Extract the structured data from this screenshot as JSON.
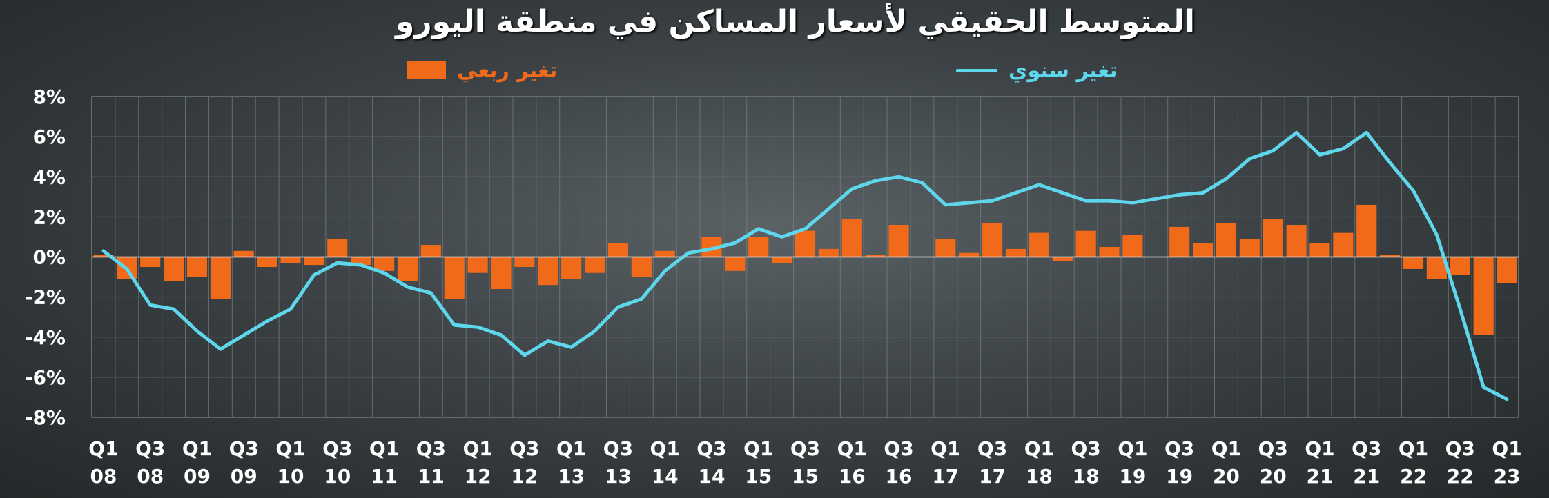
{
  "chart_data": {
    "type": "bar",
    "title": "المتوسط الحقيقي لأسعار المساكن في منطقة اليورو",
    "legend": {
      "quarterly_label": "تغير ربعي",
      "annual_label": "تغير سنوي",
      "placement": "top-center"
    },
    "y_ticks": [
      "8%",
      "6%",
      "4%",
      "2%",
      "0%",
      "-2%",
      "-4%",
      "-6%",
      "-8%"
    ],
    "ylim": [
      -8,
      8
    ],
    "grid": true,
    "x_ticks": [
      [
        "Q1",
        "08"
      ],
      [
        "Q3",
        "08"
      ],
      [
        "Q1",
        "09"
      ],
      [
        "Q3",
        "09"
      ],
      [
        "Q1",
        "10"
      ],
      [
        "Q3",
        "10"
      ],
      [
        "Q1",
        "11"
      ],
      [
        "Q3",
        "11"
      ],
      [
        "Q1",
        "12"
      ],
      [
        "Q3",
        "12"
      ],
      [
        "Q1",
        "13"
      ],
      [
        "Q3",
        "13"
      ],
      [
        "Q1",
        "14"
      ],
      [
        "Q3",
        "14"
      ],
      [
        "Q1",
        "15"
      ],
      [
        "Q3",
        "15"
      ],
      [
        "Q1",
        "16"
      ],
      [
        "Q3",
        "16"
      ],
      [
        "Q1",
        "17"
      ],
      [
        "Q3",
        "17"
      ],
      [
        "Q1",
        "18"
      ],
      [
        "Q3",
        "18"
      ],
      [
        "Q1",
        "19"
      ],
      [
        "Q3",
        "19"
      ],
      [
        "Q1",
        "20"
      ],
      [
        "Q3",
        "20"
      ],
      [
        "Q1",
        "21"
      ],
      [
        "Q3",
        "21"
      ],
      [
        "Q1",
        "22"
      ],
      [
        "Q3",
        "22"
      ],
      [
        "Q1",
        "23"
      ]
    ],
    "series": [
      {
        "name": "تغير ربعي",
        "type": "bar",
        "color": "#f06a1a",
        "values": [
          0.1,
          -1.1,
          -0.5,
          -1.2,
          -1.0,
          -2.1,
          0.3,
          -0.5,
          -0.3,
          -0.4,
          0.9,
          -0.4,
          -0.7,
          -1.2,
          0.6,
          -2.1,
          -0.8,
          -1.6,
          -0.5,
          -1.4,
          -1.1,
          -0.8,
          0.7,
          -1.0,
          0.3,
          0.0,
          1.0,
          -0.7,
          1.0,
          -0.3,
          1.3,
          0.4,
          1.9,
          0.1,
          1.6,
          0.0,
          0.9,
          0.2,
          1.7,
          0.4,
          1.2,
          -0.2,
          1.3,
          0.5,
          1.1,
          0.0,
          1.5,
          0.7,
          1.7,
          0.9,
          1.9,
          1.6,
          0.7,
          1.2,
          2.6,
          0.1,
          -0.6,
          -1.1,
          -0.9,
          -3.9,
          -1.3
        ]
      },
      {
        "name": "تغير سنوي",
        "type": "line",
        "color": "#5ed6ec",
        "values": [
          0.3,
          -0.6,
          -2.4,
          -2.6,
          -3.7,
          -4.6,
          -3.9,
          -3.2,
          -2.6,
          -0.9,
          -0.3,
          -0.4,
          -0.8,
          -1.5,
          -1.8,
          -3.4,
          -3.5,
          -3.9,
          -4.9,
          -4.2,
          -4.5,
          -3.7,
          -2.5,
          -2.1,
          -0.7,
          0.2,
          0.4,
          0.7,
          1.4,
          1.0,
          1.4,
          2.4,
          3.4,
          3.8,
          4.0,
          3.7,
          2.6,
          2.7,
          2.8,
          3.2,
          3.6,
          3.2,
          2.8,
          2.8,
          2.7,
          2.9,
          3.1,
          3.2,
          3.9,
          4.9,
          5.3,
          6.2,
          5.1,
          5.4,
          6.2,
          4.7,
          3.3,
          1.1,
          -2.6,
          -6.5,
          -7.1
        ]
      }
    ]
  }
}
